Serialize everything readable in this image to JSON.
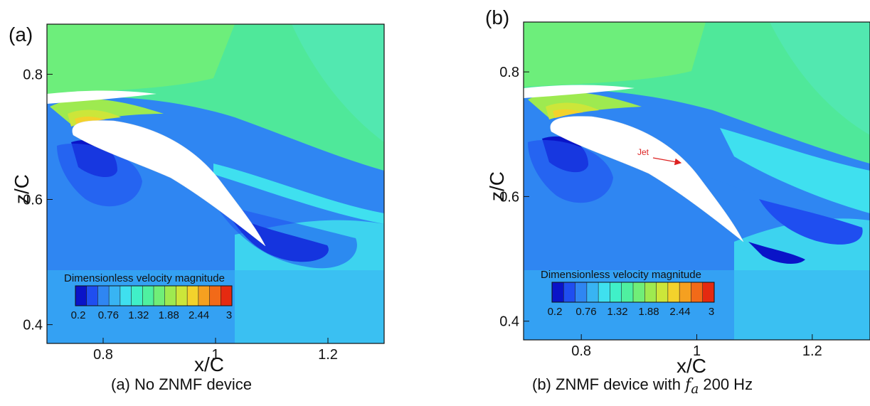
{
  "panels": [
    {
      "id": "a",
      "letter": "(a)",
      "caption": "(a) No ZNMF device",
      "xlabel": "x/C",
      "ylabel": "z/C",
      "colorbar_title": "Dimensionless velocity magnitude",
      "colorbar_ticks": [
        "0.2",
        "0.76",
        "1.32",
        "1.88",
        "2.44",
        "3"
      ],
      "x_ticks": [
        {
          "value": 0.8,
          "label": "0.8"
        },
        {
          "value": 1.0,
          "label": "1"
        },
        {
          "value": 1.2,
          "label": "1.2"
        }
      ],
      "y_ticks": [
        {
          "value": 0.8,
          "label": "0.8"
        },
        {
          "value": 0.6,
          "label": "0.6"
        },
        {
          "value": 0.4,
          "label": "0.4"
        }
      ],
      "jet_label": ""
    },
    {
      "id": "b",
      "letter": "(b)",
      "caption_prefix": "(b) ZNMF device with ",
      "caption_symbol": "f",
      "caption_subscript": "a",
      "caption_suffix": " 200 Hz",
      "xlabel": "x/C",
      "ylabel": "z/C",
      "colorbar_title": "Dimensionless velocity magnitude",
      "colorbar_ticks": [
        "0.2",
        "0.76",
        "1.32",
        "1.88",
        "2.44",
        "3"
      ],
      "x_ticks": [
        {
          "value": 0.8,
          "label": "0.8"
        },
        {
          "value": 1.0,
          "label": "1"
        },
        {
          "value": 1.2,
          "label": "1.2"
        }
      ],
      "y_ticks": [
        {
          "value": 0.8,
          "label": "0.8"
        },
        {
          "value": 0.6,
          "label": "0.6"
        },
        {
          "value": 0.4,
          "label": "0.4"
        }
      ],
      "jet_label": "Jet"
    }
  ],
  "axis_range": {
    "x": [
      0.7,
      1.3
    ],
    "z": [
      0.37,
      0.88
    ]
  },
  "colormap": [
    "#0a14c8",
    "#1f4ef0",
    "#2f86f2",
    "#38b4f3",
    "#3fe0ef",
    "#40f0c8",
    "#4ff0a0",
    "#70ee78",
    "#9eea50",
    "#cce63a",
    "#f3d22c",
    "#f5a020",
    "#f26a18",
    "#e52a10"
  ],
  "jet_color": "#dd2222"
}
